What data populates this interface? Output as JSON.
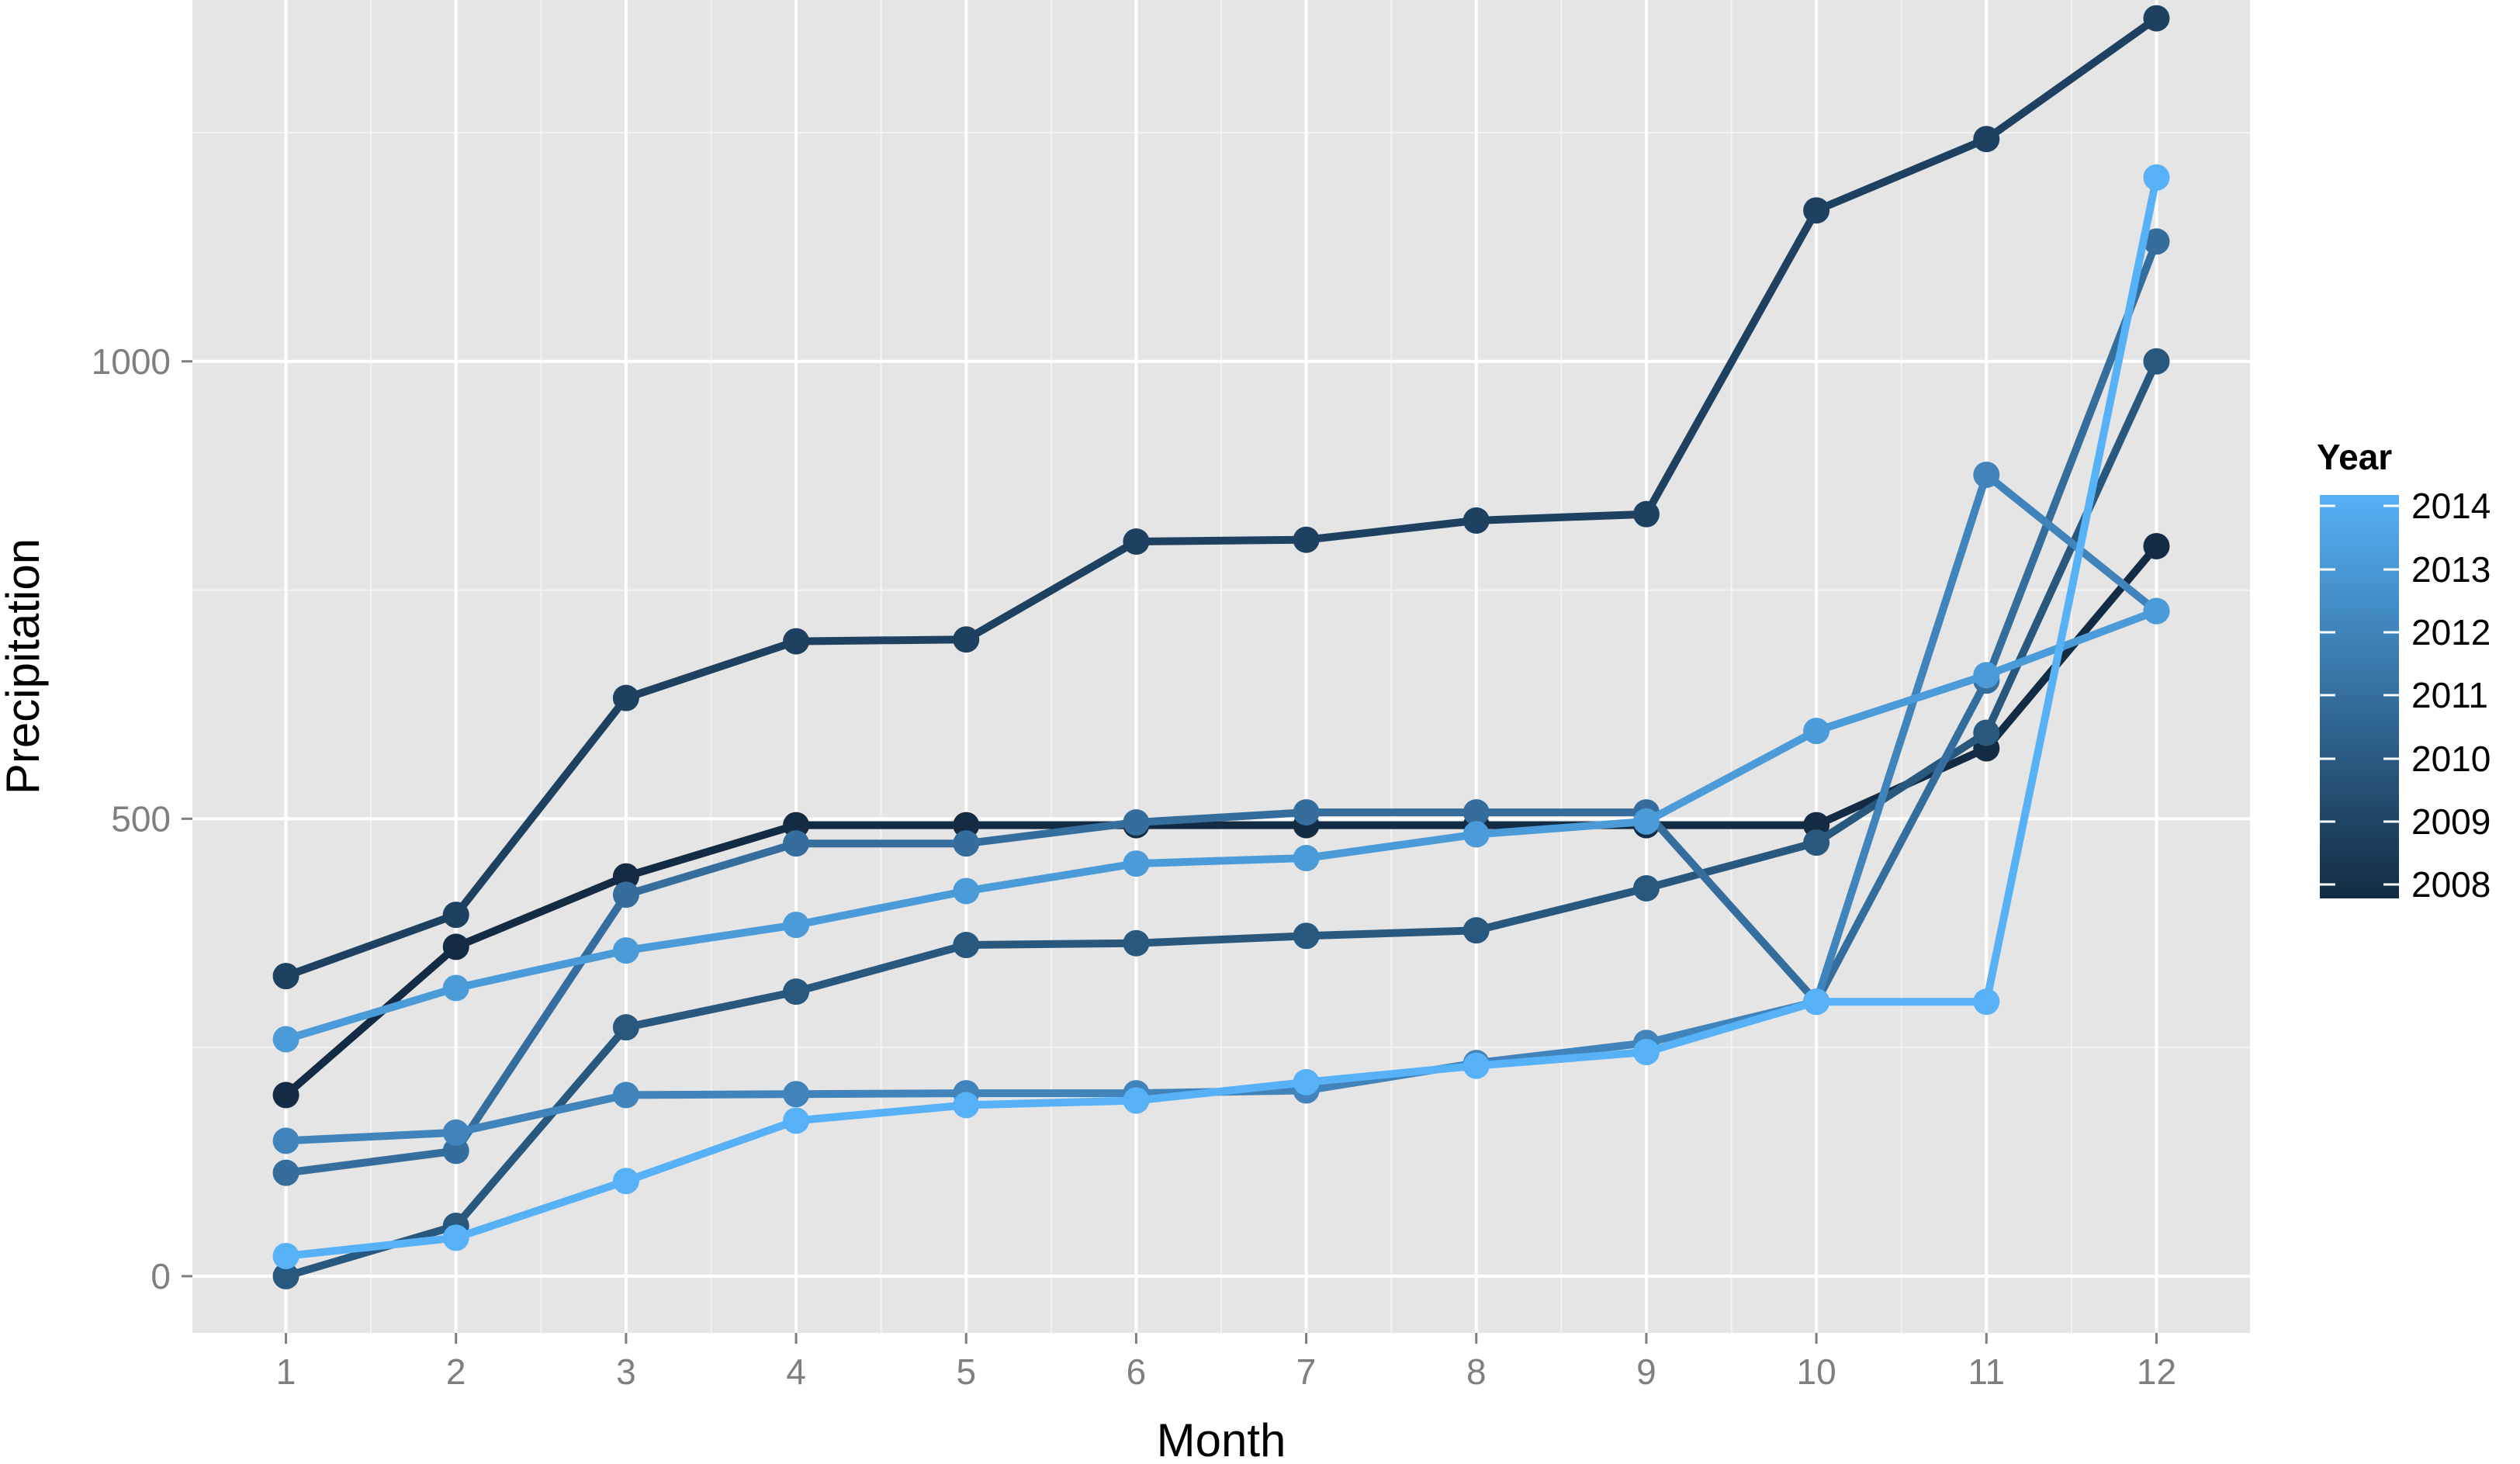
{
  "chart_data": {
    "type": "line",
    "xlabel": "Month",
    "ylabel": "Precipitation",
    "xlim": [
      0.45,
      12.55
    ],
    "ylim": [
      -62,
      1395
    ],
    "x_ticks": [
      1,
      2,
      3,
      4,
      5,
      6,
      7,
      8,
      9,
      10,
      11,
      12
    ],
    "y_ticks": [
      0,
      500,
      1000
    ],
    "grid": true,
    "legend": {
      "title": "Year",
      "position": "right",
      "colorbar": true,
      "min": 2008,
      "max": 2014,
      "labels": [
        "2014",
        "2013",
        "2012",
        "2011",
        "2010",
        "2009",
        "2008"
      ]
    },
    "colors": {
      "low": "#132b43",
      "high": "#56b1f7",
      "panel": "#e5e5e5",
      "grid": "#ffffff"
    },
    "x": [
      1,
      2,
      3,
      4,
      5,
      6,
      7,
      8,
      9,
      10,
      11,
      12
    ],
    "series": [
      {
        "name": "2008",
        "values": [
          198,
          360,
          437,
          493,
          493,
          493,
          493,
          493,
          493,
          493,
          577,
          798
        ]
      },
      {
        "name": "2009",
        "values": [
          328,
          395,
          632,
          694,
          696,
          803,
          805,
          826,
          833,
          1165,
          1243,
          1375
        ]
      },
      {
        "name": "2010",
        "values": [
          0,
          55,
          272,
          311,
          362,
          364,
          372,
          378,
          424,
          474,
          594,
          1000
        ]
      },
      {
        "name": "2011",
        "values": [
          113,
          137,
          417,
          473,
          473,
          496,
          507,
          507,
          507,
          300,
          651,
          1131
        ]
      },
      {
        "name": "2012",
        "values": [
          148,
          157,
          198,
          199,
          200,
          200,
          203,
          233,
          255,
          300,
          876,
          727
        ]
      },
      {
        "name": "2013",
        "values": [
          259,
          315,
          356,
          384,
          421,
          451,
          457,
          483,
          497,
          596,
          657,
          727
        ]
      },
      {
        "name": "2014",
        "values": [
          22,
          42,
          104,
          170,
          187,
          192,
          212,
          230,
          245,
          300,
          300,
          1201
        ]
      }
    ]
  }
}
